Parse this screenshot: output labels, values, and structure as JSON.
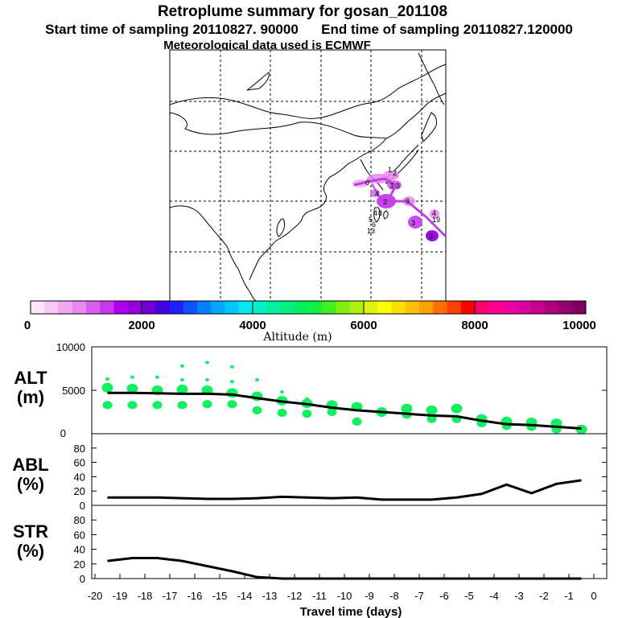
{
  "header": {
    "title": "Retroplume summary for gosan_201108",
    "sampling": "Start time of sampling 20110827. 90000      End time of sampling 20110827.120000",
    "met": "Meteorological data used is ECMWF"
  },
  "colorbar": {
    "label": "Altitude (m)",
    "ticks": [
      "0",
      "2000",
      "4000",
      "6000",
      "8000",
      "10000"
    ],
    "colors": [
      "#ffe6ff",
      "#f8c8f8",
      "#f0a8f0",
      "#e888f0",
      "#d860f0",
      "#c838f0",
      "#b000f0",
      "#9800e0",
      "#7000d0",
      "#4400e0",
      "#2020ff",
      "#1050ff",
      "#0080ff",
      "#00a8ff",
      "#00c8ff",
      "#00e8f0",
      "#00f0c8",
      "#00f0a0",
      "#00f080",
      "#00f060",
      "#10f040",
      "#40f020",
      "#80f010",
      "#b0f010",
      "#e0f010",
      "#ffff00",
      "#ffe000",
      "#ffc000",
      "#ffa000",
      "#ff7000",
      "#ff4000",
      "#ff0000",
      "#ff0070",
      "#ff0090",
      "#f000a0",
      "#e000a0",
      "#c80090",
      "#b00080",
      "#980070",
      "#800060"
    ]
  },
  "map": {
    "labels": [
      "0",
      "1",
      "2",
      "3",
      "3",
      "2",
      "4",
      "9",
      "3",
      "4",
      "19",
      "3",
      "4",
      "5",
      "6",
      "13",
      "8"
    ]
  },
  "panels": {
    "alt": {
      "label1": "ALT",
      "label2": "(m)",
      "yticks": [
        "10000",
        "5000",
        "0"
      ]
    },
    "abl": {
      "label1": "ABL",
      "label2": "(%)",
      "yticks": [
        "80",
        "60",
        "40",
        "20",
        "0"
      ]
    },
    "str": {
      "label1": "STR",
      "label2": "(%)",
      "yticks": [
        "80",
        "60",
        "40",
        "20",
        "0"
      ]
    }
  },
  "xaxis": {
    "label": "Travel time (days)",
    "ticks": [
      "-20",
      "-19",
      "-18",
      "-17",
      "-16",
      "-15",
      "-14",
      "-13",
      "-12",
      "-11",
      "-10",
      "-9",
      "-8",
      "-7",
      "-6",
      "-5",
      "-4",
      "-3",
      "-2",
      "-1",
      "0"
    ]
  },
  "chart_data": [
    {
      "type": "line",
      "name": "ALT",
      "ylabel": "ALT (m)",
      "xlabel": "Travel time (days)",
      "xlim": [
        -20,
        0
      ],
      "ylim": [
        0,
        10000
      ],
      "x": [
        -19.5,
        -18.5,
        -17.5,
        -16.5,
        -15.5,
        -14.5,
        -13.5,
        -12.5,
        -11.5,
        -10.5,
        -9.5,
        -8.5,
        -7.5,
        -6.5,
        -5.5,
        -4.5,
        -3.5,
        -2.5,
        -1.5,
        -0.5
      ],
      "mean": [
        4700,
        4700,
        4650,
        4600,
        4600,
        4500,
        4100,
        3700,
        3400,
        3000,
        2700,
        2500,
        2300,
        2100,
        2000,
        1500,
        1100,
        1000,
        800,
        600
      ],
      "plume_points": [
        {
          "x": -19.5,
          "y": [
            5300,
            3300,
            6300
          ]
        },
        {
          "x": -18.5,
          "y": [
            5200,
            3300,
            6500
          ]
        },
        {
          "x": -17.5,
          "y": [
            5000,
            3300,
            6500
          ]
        },
        {
          "x": -16.5,
          "y": [
            5100,
            3300,
            7800,
            6200
          ]
        },
        {
          "x": -15.5,
          "y": [
            5000,
            3400,
            8200,
            6200
          ]
        },
        {
          "x": -14.5,
          "y": [
            4700,
            3400,
            7700,
            6000
          ]
        },
        {
          "x": -13.5,
          "y": [
            4300,
            2700,
            6200
          ]
        },
        {
          "x": -12.5,
          "y": [
            3800,
            2400,
            4800
          ]
        },
        {
          "x": -11.5,
          "y": [
            3500,
            2300,
            4000
          ]
        },
        {
          "x": -10.5,
          "y": [
            3300,
            2500
          ]
        },
        {
          "x": -9.5,
          "y": [
            3100,
            1400
          ]
        },
        {
          "x": -8.5,
          "y": [
            2500
          ]
        },
        {
          "x": -7.5,
          "y": [
            2900,
            2200
          ]
        },
        {
          "x": -6.5,
          "y": [
            2700,
            1700
          ]
        },
        {
          "x": -5.5,
          "y": [
            2900,
            1700
          ]
        },
        {
          "x": -4.5,
          "y": [
            1700,
            1200
          ]
        },
        {
          "x": -3.5,
          "y": [
            1400,
            900
          ]
        },
        {
          "x": -2.5,
          "y": [
            1300,
            800
          ]
        },
        {
          "x": -1.5,
          "y": [
            1200,
            500
          ]
        },
        {
          "x": -0.5,
          "y": [
            500
          ]
        }
      ]
    },
    {
      "type": "line",
      "name": "ABL",
      "ylabel": "ABL (%)",
      "xlim": [
        -20,
        0
      ],
      "ylim": [
        0,
        100
      ],
      "x": [
        -19.5,
        -18.5,
        -17.5,
        -16.5,
        -15.5,
        -14.5,
        -13.5,
        -12.5,
        -11.5,
        -10.5,
        -9.5,
        -8.5,
        -7.5,
        -6.5,
        -5.5,
        -4.5,
        -3.5,
        -2.5,
        -1.5,
        -0.5
      ],
      "values": [
        11,
        11,
        11,
        10,
        9,
        9,
        10,
        12,
        11,
        10,
        11,
        8,
        8,
        8,
        11,
        16,
        29,
        17,
        30,
        35
      ]
    },
    {
      "type": "line",
      "name": "STR",
      "ylabel": "STR (%)",
      "xlim": [
        -20,
        0
      ],
      "ylim": [
        0,
        100
      ],
      "x": [
        -19.5,
        -18.5,
        -17.5,
        -16.5,
        -15.5,
        -14.5,
        -13.5,
        -12.5,
        -11.5,
        -10.5,
        -9.5,
        -8.5,
        -7.5,
        -6.5,
        -5.5,
        -4.5,
        -3.5,
        -2.5,
        -1.5,
        -0.5
      ],
      "values": [
        24,
        28,
        28,
        24,
        17,
        10,
        2,
        0,
        0,
        0,
        0,
        0,
        0,
        0,
        0,
        0,
        0,
        0,
        0,
        0
      ]
    }
  ]
}
